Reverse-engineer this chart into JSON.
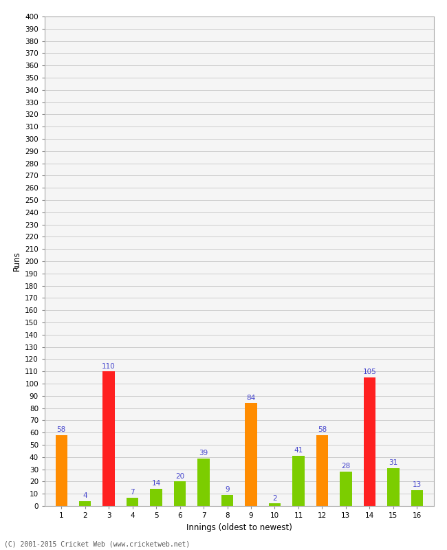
{
  "xlabel": "Innings (oldest to newest)",
  "ylabel": "Runs",
  "innings": [
    1,
    2,
    3,
    4,
    5,
    6,
    7,
    8,
    9,
    10,
    11,
    12,
    13,
    14,
    15,
    16
  ],
  "values": [
    58,
    4,
    110,
    7,
    14,
    20,
    39,
    9,
    84,
    2,
    41,
    58,
    28,
    105,
    31,
    13
  ],
  "colors": [
    "#ff8c00",
    "#7ccd00",
    "#ff2020",
    "#7ccd00",
    "#7ccd00",
    "#7ccd00",
    "#7ccd00",
    "#7ccd00",
    "#ff8c00",
    "#7ccd00",
    "#7ccd00",
    "#ff8c00",
    "#7ccd00",
    "#ff2020",
    "#7ccd00",
    "#7ccd00"
  ],
  "label_color": "#4444cc",
  "ylim": [
    0,
    400
  ],
  "yticks": [
    0,
    10,
    20,
    30,
    40,
    50,
    60,
    70,
    80,
    90,
    100,
    110,
    120,
    130,
    140,
    150,
    160,
    170,
    180,
    190,
    200,
    210,
    220,
    230,
    240,
    250,
    260,
    270,
    280,
    290,
    300,
    310,
    320,
    330,
    340,
    350,
    360,
    370,
    380,
    390,
    400
  ],
  "grid_color": "#cccccc",
  "bg_color": "#ffffff",
  "plot_bg_color": "#f5f5f5",
  "footer": "(C) 2001-2015 Cricket Web (www.cricketweb.net)",
  "footer_color": "#555555",
  "label_fontsize": 7.5,
  "axis_fontsize": 7.5,
  "bar_width": 0.5
}
